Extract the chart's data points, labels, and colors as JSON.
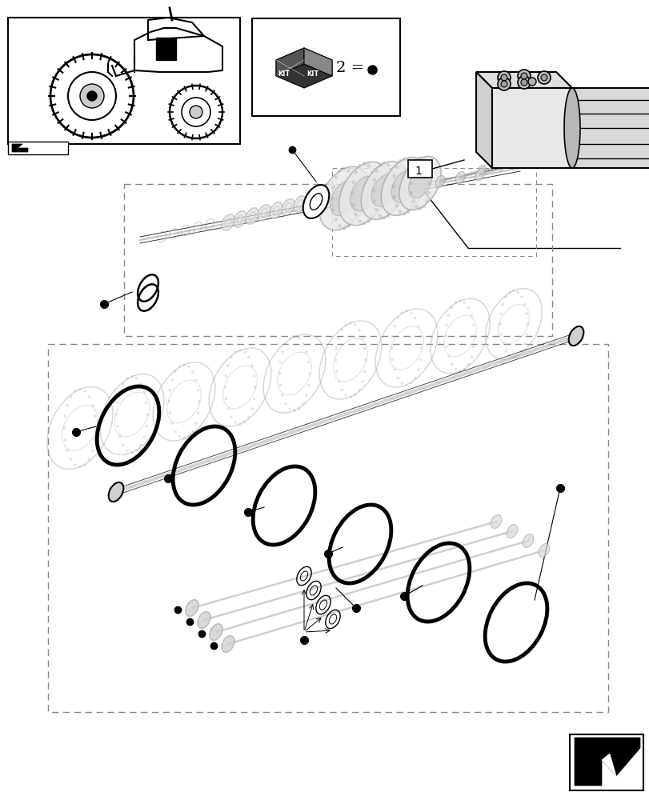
{
  "bg_color": "#ffffff",
  "line_color": "#000000",
  "gray_color": "#aaaaaa",
  "dash_color": "#888888",
  "light_gray": "#cccccc"
}
